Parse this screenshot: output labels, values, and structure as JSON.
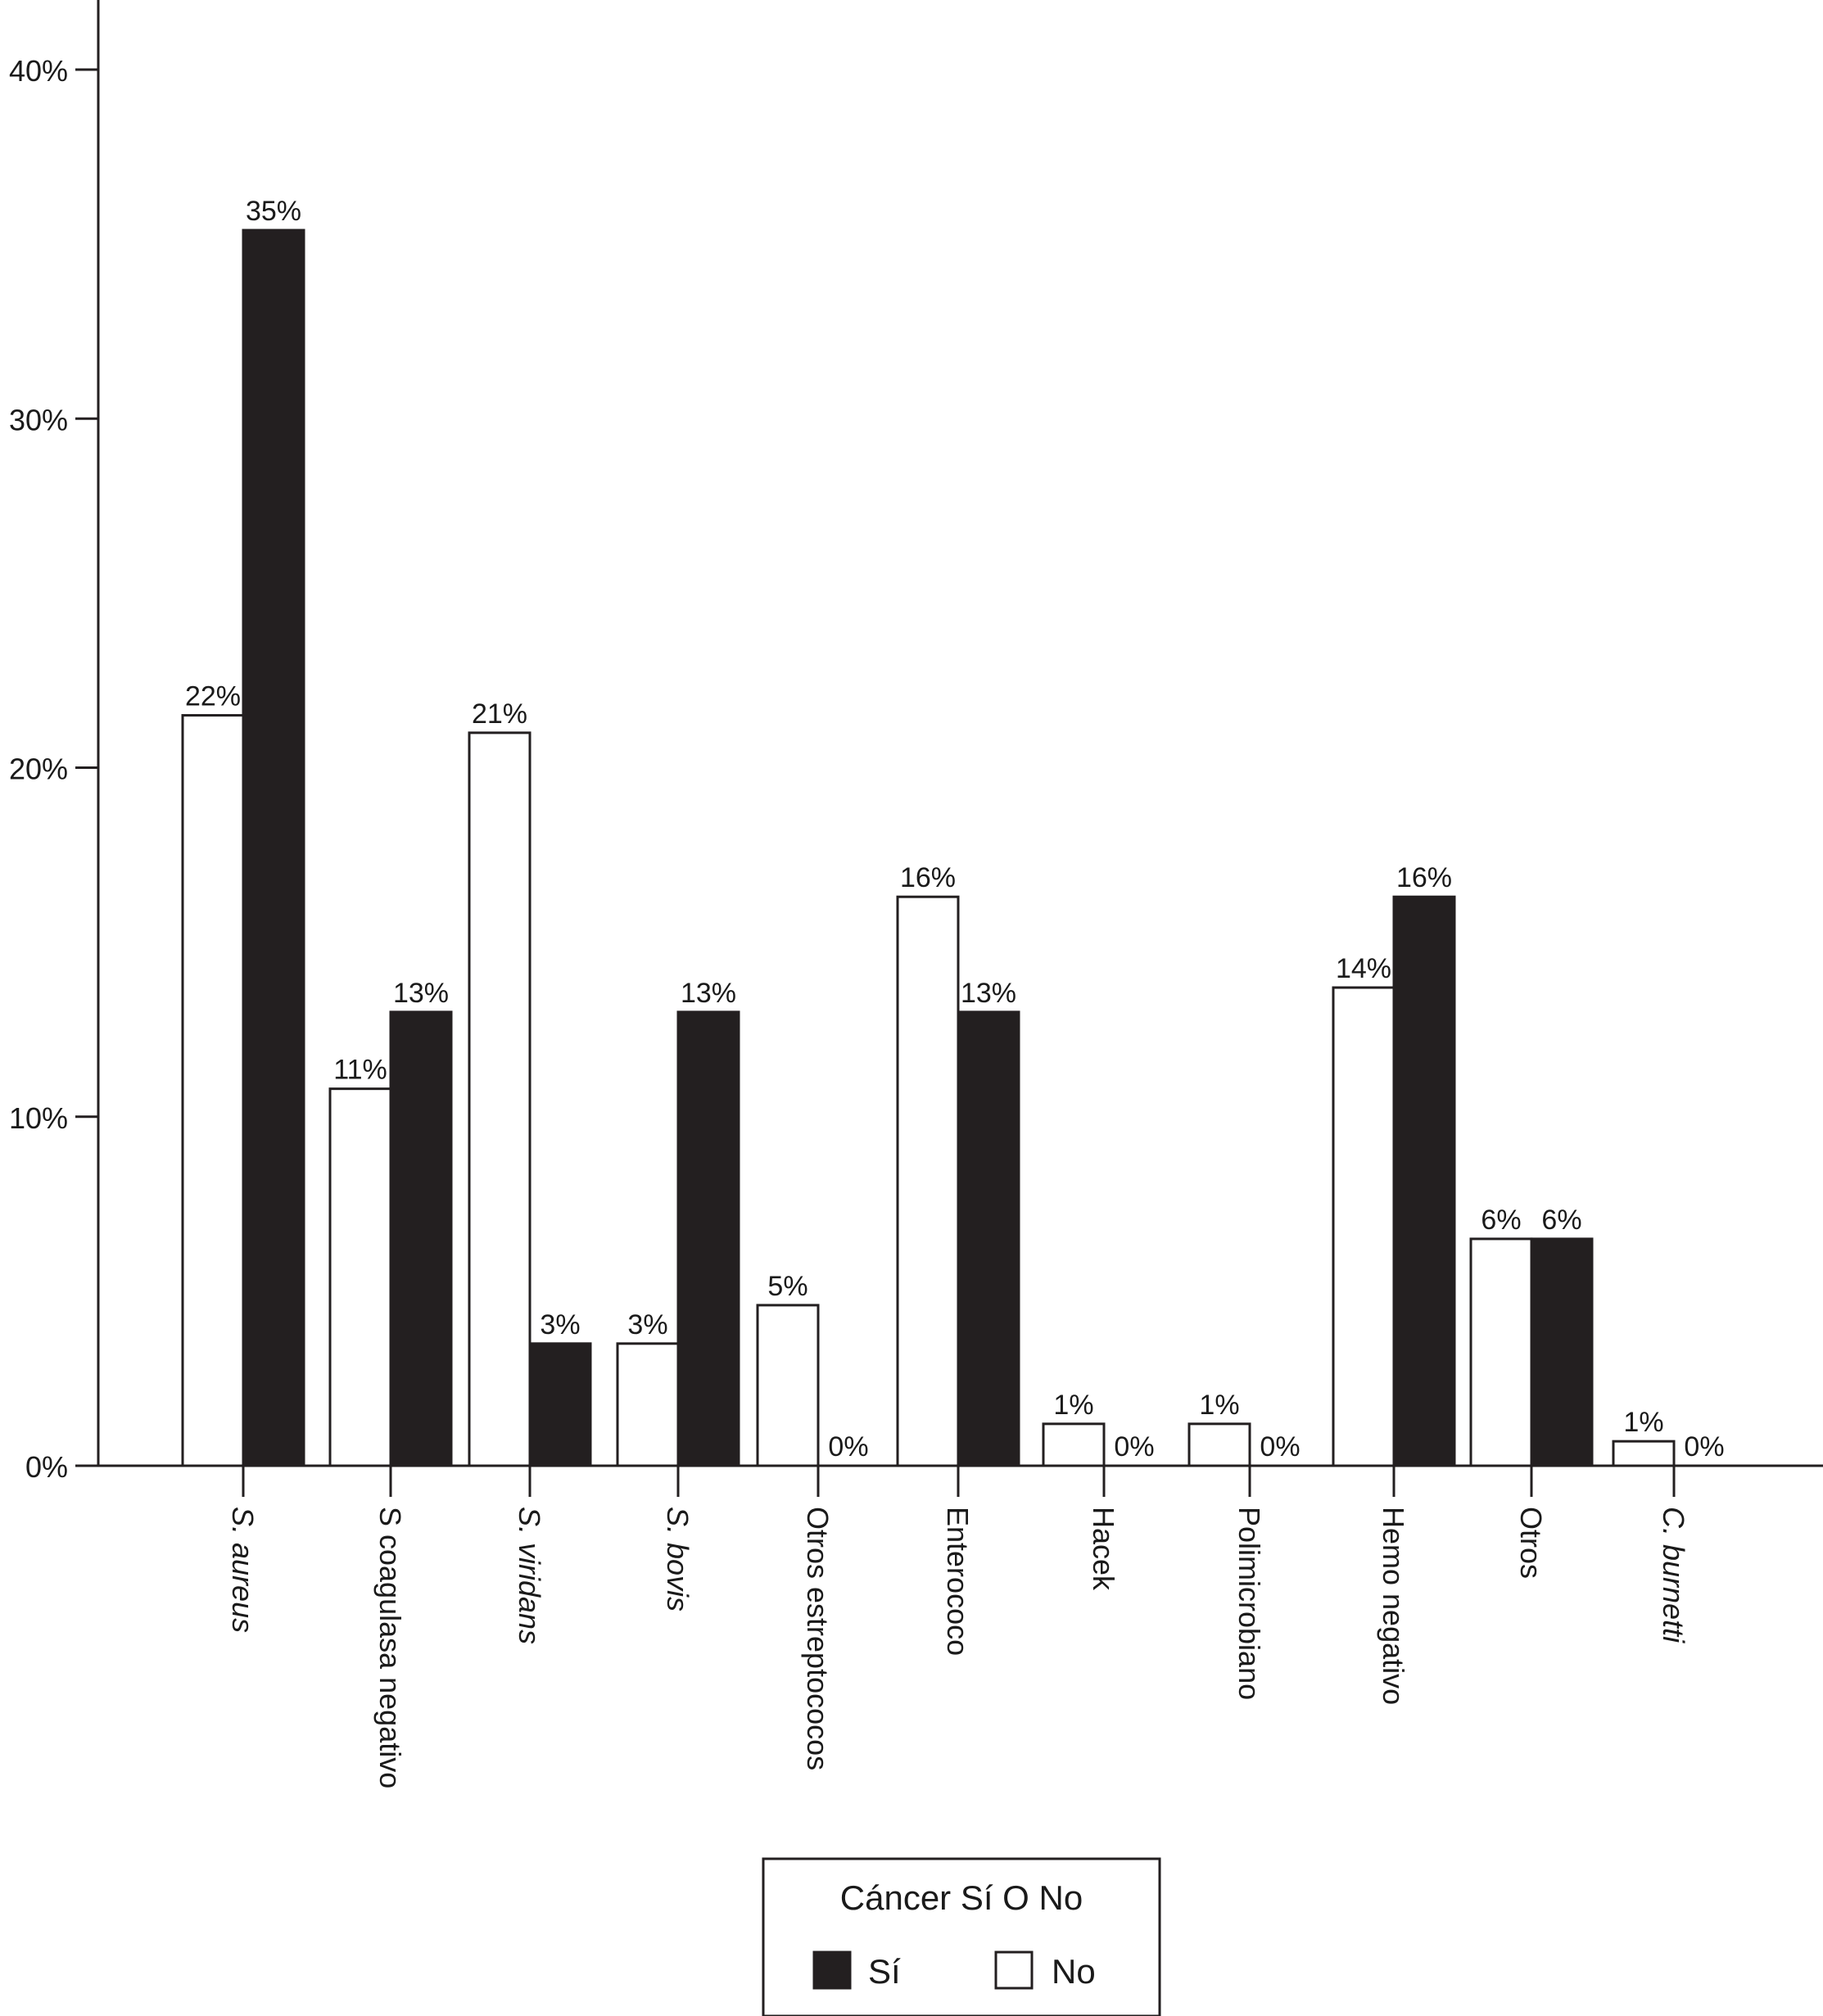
{
  "chart_data": {
    "type": "bar",
    "categories": [
      "S. aureus",
      "S coagulasa negativo",
      "S. viridans",
      "S. bovis",
      "Otros estreptococos",
      "Enterococo",
      "Hacek",
      "Polimicrobiano",
      "Hemo negativo",
      "Otros",
      "C. burnetti"
    ],
    "category_italic": [
      true,
      false,
      true,
      true,
      false,
      false,
      false,
      false,
      false,
      false,
      true
    ],
    "series": [
      {
        "name": "No",
        "values": [
          21.5,
          10.8,
          21.0,
          3.5,
          4.6,
          16.3,
          1.2,
          1.2,
          13.7,
          6.5,
          0.7
        ],
        "labels": [
          "22%",
          "11%",
          "21%",
          "3%",
          "5%",
          "16%",
          "1%",
          "1%",
          "14%",
          "6%",
          "1%"
        ],
        "color": "#ffffff"
      },
      {
        "name": "Sí",
        "values": [
          35.4,
          13.0,
          3.5,
          13.0,
          0,
          13.0,
          0,
          0,
          16.3,
          6.5,
          0
        ],
        "labels": [
          "35%",
          "13%",
          "3%",
          "13%",
          "0%",
          "13%",
          "0%",
          "0%",
          "16%",
          "6%",
          "0%"
        ],
        "color": "#231f20"
      }
    ],
    "yticks": [
      "0%",
      "10%",
      "20%",
      "30%",
      "40%"
    ],
    "ylim": [
      0,
      40
    ],
    "grid": false,
    "legend": {
      "title": "Cáncer Sí O No",
      "items": [
        {
          "label": "Sí",
          "color": "#231f20"
        },
        {
          "label": "No",
          "color": "#ffffff"
        }
      ],
      "placement": "bottom-center"
    }
  }
}
